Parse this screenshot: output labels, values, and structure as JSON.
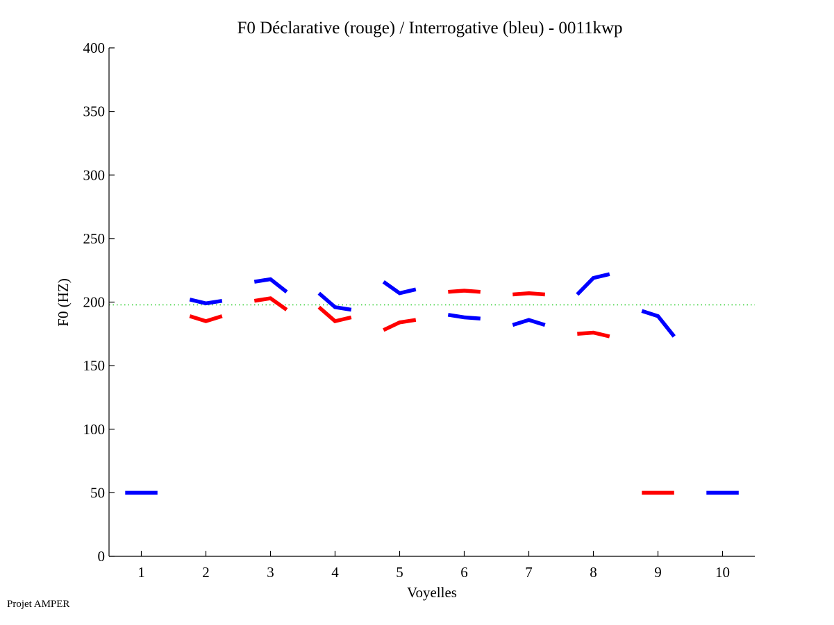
{
  "chart_data": {
    "type": "line",
    "title": "F0 Déclarative (rouge) / Interrogative (bleu) - 0011kwp",
    "xlabel": "Voyelles",
    "ylabel": "F0 (HZ)",
    "xlim": [
      0.5,
      10.5
    ],
    "ylim": [
      0,
      400
    ],
    "xticks": [
      1,
      2,
      3,
      4,
      5,
      6,
      7,
      8,
      9,
      10
    ],
    "yticks": [
      0,
      50,
      100,
      150,
      200,
      250,
      300,
      350,
      400
    ],
    "grid": false,
    "reference_line": {
      "y": 197.8,
      "color": "#22cc22",
      "style": "dotted"
    },
    "series": [
      {
        "name": "Déclarative (rouge)",
        "color": "#ff0000",
        "segments": [
          {
            "vowel": 2,
            "values": [
              189,
              185,
              189
            ]
          },
          {
            "vowel": 3,
            "values": [
              201,
              203,
              194
            ]
          },
          {
            "vowel": 4,
            "values": [
              196,
              185,
              188
            ]
          },
          {
            "vowel": 5,
            "values": [
              178,
              184,
              186
            ]
          },
          {
            "vowel": 6,
            "values": [
              208,
              209,
              208
            ]
          },
          {
            "vowel": 7,
            "values": [
              206,
              207,
              206
            ]
          },
          {
            "vowel": 8,
            "values": [
              175,
              176,
              173
            ]
          },
          {
            "vowel": 9,
            "values": [
              50,
              50,
              50
            ]
          }
        ]
      },
      {
        "name": "Interrogative (bleu)",
        "color": "#0000ff",
        "segments": [
          {
            "vowel": 1,
            "values": [
              50,
              50,
              50
            ]
          },
          {
            "vowel": 2,
            "values": [
              202,
              199,
              201
            ]
          },
          {
            "vowel": 3,
            "values": [
              216,
              218,
              208
            ]
          },
          {
            "vowel": 4,
            "values": [
              207,
              196,
              194
            ]
          },
          {
            "vowel": 5,
            "values": [
              216,
              207,
              210
            ]
          },
          {
            "vowel": 6,
            "values": [
              190,
              188,
              187
            ]
          },
          {
            "vowel": 7,
            "values": [
              182,
              186,
              182
            ]
          },
          {
            "vowel": 8,
            "values": [
              206,
              219,
              222
            ]
          },
          {
            "vowel": 9,
            "values": [
              193,
              189,
              173
            ]
          },
          {
            "vowel": 10,
            "values": [
              50,
              50,
              50
            ]
          }
        ]
      }
    ]
  },
  "footer": {
    "text": "Projet AMPER"
  }
}
